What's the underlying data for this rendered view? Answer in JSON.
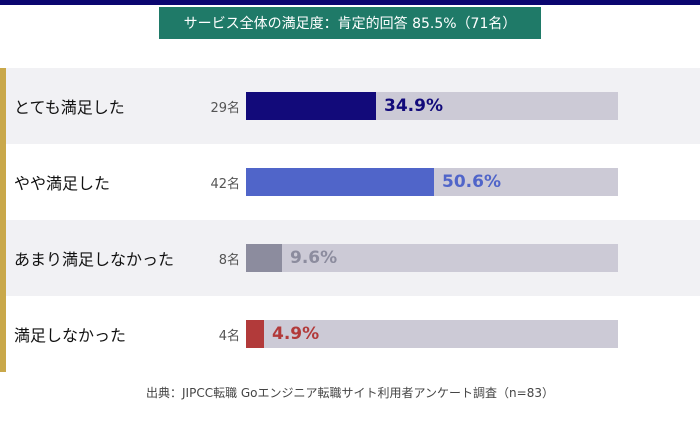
{
  "title": "サービス全体の満足度：肯定的回答 85.5%（71名）",
  "source": "出典：JIPCC転職 Goエンジニア転職サイト利用者アンケート調査（n=83）",
  "colors": {
    "top_bar": "#0b0670",
    "title_badge": "#1f7a68",
    "left_accent": "#c9a84a",
    "track": "#cccad6",
    "alt_row": "#f1f1f4"
  },
  "chart_data": {
    "type": "bar",
    "orientation": "horizontal",
    "title": "サービス全体の満足度：肯定的回答 85.5%（71名）",
    "categories": [
      "とても満足した",
      "やや満足した",
      "あまり満足しなかった",
      "満足しなかった"
    ],
    "counts": [
      "29名",
      "42名",
      "8名",
      "4名"
    ],
    "values": [
      34.9,
      50.6,
      9.6,
      4.9
    ],
    "value_labels": [
      "34.9%",
      "50.6%",
      "9.6%",
      "4.9%"
    ],
    "colors": [
      "#120a7a",
      "#5065c9",
      "#8c8c9e",
      "#b23a3a"
    ],
    "xlim": [
      0,
      100
    ],
    "grid": false,
    "legend": "none"
  }
}
